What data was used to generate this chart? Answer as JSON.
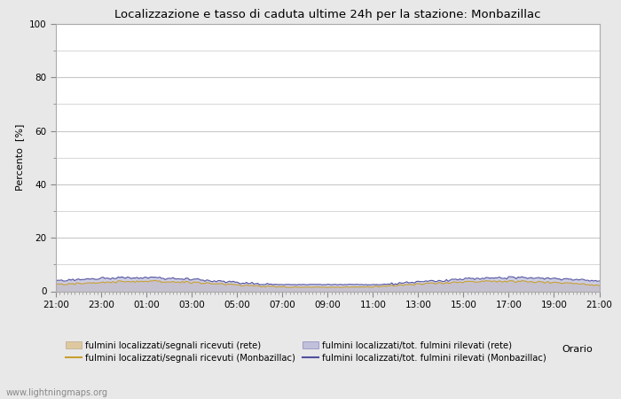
{
  "title": "Localizzazione e tasso di caduta ultime 24h per la stazione: Monbazillac",
  "ylabel": "Percento  [%]",
  "xlabel": "Orario",
  "xlim": [
    0,
    24
  ],
  "ylim": [
    0,
    100
  ],
  "yticks": [
    0,
    20,
    40,
    60,
    80,
    100
  ],
  "yticks_minor": [
    10,
    30,
    50,
    70,
    90
  ],
  "xtick_labels": [
    "21:00",
    "23:00",
    "01:00",
    "03:00",
    "05:00",
    "07:00",
    "09:00",
    "11:00",
    "13:00",
    "15:00",
    "17:00",
    "19:00",
    "21:00"
  ],
  "bg_color": "#e8e8e8",
  "plot_bg_color": "#ffffff",
  "grid_color": "#c8c8c8",
  "watermark": "www.lightningmaps.org",
  "fill_rete_color": "#dfc8a0",
  "fill_monba_color": "#c0c0dc",
  "line_rete_color": "#c8a030",
  "line_monba_color": "#5050a0",
  "legend_labels": [
    "fulmini localizzati/segnali ricevuti (rete)",
    "fulmini localizzati/segnali ricevuti (Monbazillac)",
    "fulmini localizzati/tot. fulmini rilevati (rete)",
    "fulmini localizzati/tot. fulmini rilevati (Monbazillac)"
  ]
}
